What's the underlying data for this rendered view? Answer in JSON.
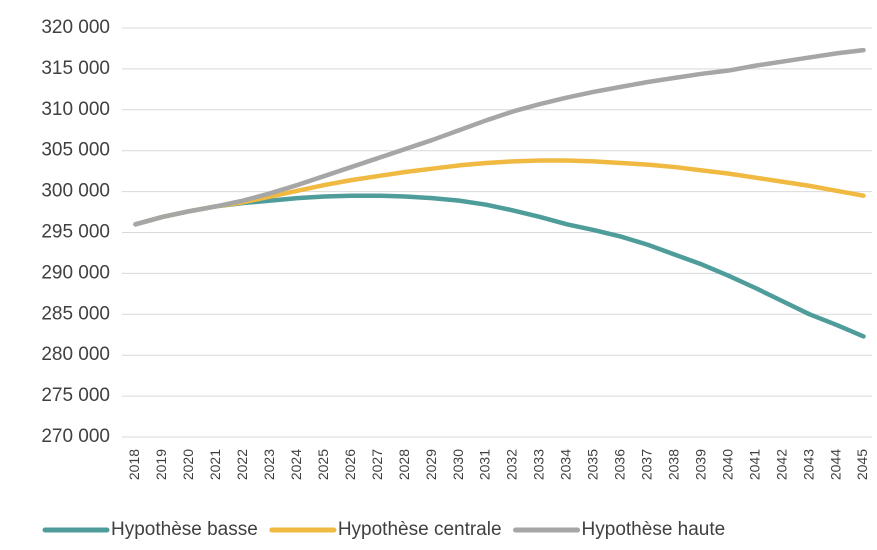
{
  "chart_data": {
    "type": "line",
    "categories": [
      "2018",
      "2019",
      "2020",
      "2021",
      "2022",
      "2023",
      "2024",
      "2025",
      "2026",
      "2027",
      "2028",
      "2029",
      "2030",
      "2031",
      "2032",
      "2033",
      "2034",
      "2035",
      "2036",
      "2037",
      "2038",
      "2039",
      "2040",
      "2041",
      "2042",
      "2043",
      "2044",
      "2045"
    ],
    "series": [
      {
        "name": "Hypothèse basse",
        "color": "#4f9d9a",
        "values": [
          296000,
          296900,
          297600,
          298200,
          298600,
          298900,
          299200,
          299400,
          299500,
          299500,
          299400,
          299200,
          298900,
          298400,
          297700,
          296900,
          296000,
          295300,
          294500,
          293500,
          292300,
          291100,
          289700,
          288200,
          286600,
          285000,
          283700,
          282300
        ]
      },
      {
        "name": "Hypothèse centrale",
        "color": "#f0b941",
        "values": [
          296000,
          296900,
          297600,
          298200,
          298700,
          299400,
          300100,
          300800,
          301400,
          301900,
          302400,
          302800,
          303200,
          303500,
          303700,
          303800,
          303800,
          303700,
          303500,
          303300,
          303000,
          302600,
          302200,
          301700,
          301200,
          300700,
          300100,
          299500
        ]
      },
      {
        "name": "Hypothèse haute",
        "color": "#a6a6a6",
        "values": [
          296000,
          296900,
          297600,
          298200,
          298900,
          299800,
          300800,
          301900,
          303000,
          304100,
          305200,
          306300,
          307500,
          308700,
          309800,
          310700,
          311500,
          312200,
          312800,
          313400,
          313900,
          314400,
          314800,
          315400,
          315900,
          316400,
          316900,
          317300
        ]
      }
    ],
    "ylim": [
      270000,
      320000
    ],
    "yticks": [
      {
        "value": 270000,
        "label": "270 000"
      },
      {
        "value": 275000,
        "label": "275 000"
      },
      {
        "value": 280000,
        "label": "280 000"
      },
      {
        "value": 285000,
        "label": "285 000"
      },
      {
        "value": 290000,
        "label": "290 000"
      },
      {
        "value": 295000,
        "label": "295 000"
      },
      {
        "value": 300000,
        "label": "300 000"
      },
      {
        "value": 305000,
        "label": "305 000"
      },
      {
        "value": 310000,
        "label": "310 000"
      },
      {
        "value": 315000,
        "label": "315 000"
      },
      {
        "value": 320000,
        "label": "320 000"
      }
    ],
    "grid": true,
    "legend": "bottom"
  }
}
